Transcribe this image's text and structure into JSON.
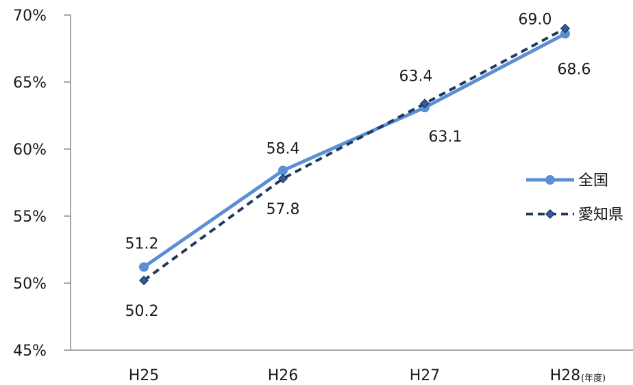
{
  "chart_data": {
    "type": "line",
    "categories": [
      "H25",
      "H26",
      "H27",
      "H28"
    ],
    "x_unit": "(年度)",
    "y_ticks": [
      "45%",
      "50%",
      "55%",
      "60%",
      "65%",
      "70%"
    ],
    "ylim": [
      45,
      70
    ],
    "y_step": 5,
    "grid": false,
    "legend_position": "right",
    "series": [
      {
        "name": "全国",
        "values": [
          51.2,
          58.4,
          63.1,
          68.6
        ],
        "value_labels": [
          "51.2",
          "58.4",
          "63.1",
          "68.6"
        ],
        "color": "#5b8fd4",
        "marker": "circle",
        "line_style": "solid"
      },
      {
        "name": "愛知県",
        "values": [
          50.2,
          57.8,
          63.4,
          69.0
        ],
        "value_labels": [
          "50.2",
          "57.8",
          "63.4",
          "69.0"
        ],
        "color": "#1f3a60",
        "marker": "diamond",
        "line_style": "dashed"
      }
    ]
  }
}
